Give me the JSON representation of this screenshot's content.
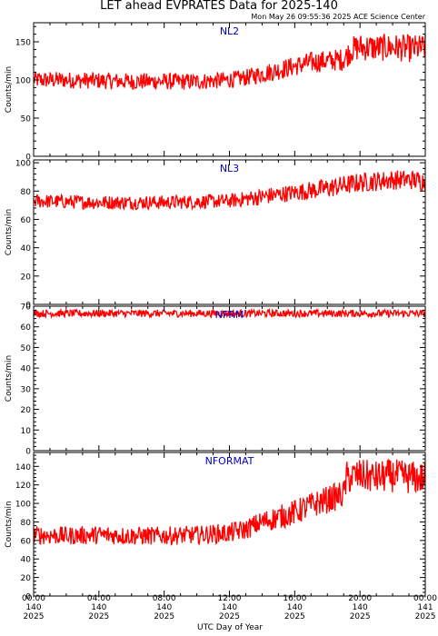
{
  "title": "LET ahead EVPRATES Data for 2025-140",
  "timestamp": "Mon May 26 09:55:36 2025 ACE Science Center",
  "xlabel": "UTC Day of Year",
  "colors": {
    "series": "#ff0000",
    "panel_label": "#0000cc",
    "axes": "#000000"
  },
  "x_ticks": [
    {
      "time": "00:00",
      "doy": "140",
      "year": "2025"
    },
    {
      "time": "04:00",
      "doy": "140",
      "year": "2025"
    },
    {
      "time": "08:00",
      "doy": "140",
      "year": "2025"
    },
    {
      "time": "12:00",
      "doy": "140",
      "year": "2025"
    },
    {
      "time": "16:00",
      "doy": "140",
      "year": "2025"
    },
    {
      "time": "20:00",
      "doy": "140",
      "year": "2025"
    },
    {
      "time": "00:00",
      "doy": "141",
      "year": "2025"
    }
  ],
  "chart_data": [
    {
      "type": "line",
      "name": "NL2",
      "ylabel": "Counts/min",
      "ylim": [
        0,
        175
      ],
      "yticks": [
        0,
        50,
        100,
        150
      ],
      "xlim_hours": [
        0,
        24
      ],
      "profile": {
        "x_hours": [
          0,
          2,
          4,
          6,
          8,
          10,
          12,
          13,
          14,
          15,
          16,
          17,
          18,
          19,
          19.5,
          20,
          21,
          22,
          23,
          24
        ],
        "y_mean": [
          100,
          100,
          99,
          98,
          98,
          98,
          100,
          103,
          108,
          113,
          118,
          123,
          125,
          127,
          140,
          143,
          142,
          143,
          141,
          142
        ],
        "noise_amplitude": [
          11,
          11,
          11,
          11,
          11,
          11,
          11,
          11,
          12,
          13,
          13,
          14,
          14,
          15,
          17,
          18,
          18,
          18,
          18,
          18
        ]
      }
    },
    {
      "type": "line",
      "name": "NL3",
      "ylabel": "Counts/min",
      "ylim": [
        0,
        102
      ],
      "yticks": [
        0,
        20,
        40,
        60,
        80,
        100
      ],
      "xlim_hours": [
        0,
        24
      ],
      "profile": {
        "x_hours": [
          0,
          4,
          8,
          12,
          14,
          16,
          18,
          19,
          20,
          21,
          22,
          23,
          24
        ],
        "y_mean": [
          73,
          72,
          72,
          73,
          76,
          79,
          82,
          84,
          86,
          87,
          88,
          88,
          87
        ],
        "noise_amplitude": [
          5,
          5,
          5,
          5,
          6,
          6,
          7,
          7,
          7,
          7,
          7,
          7,
          7
        ]
      }
    },
    {
      "type": "line",
      "name": "NFRM",
      "ylabel": "Counts/min",
      "ylim": [
        0,
        70
      ],
      "yticks": [
        0,
        10,
        20,
        30,
        40,
        50,
        60,
        70
      ],
      "xlim_hours": [
        0,
        24
      ],
      "profile": {
        "x_hours": [
          0,
          24
        ],
        "y_mean": [
          66.5,
          66.5
        ],
        "noise_amplitude": [
          1.8,
          1.8
        ]
      }
    },
    {
      "type": "line",
      "name": "NFORMAT",
      "ylabel": "Counts/min",
      "ylim": [
        0,
        155
      ],
      "yticks": [
        0,
        20,
        40,
        60,
        80,
        100,
        120,
        140
      ],
      "xlim_hours": [
        0,
        24
      ],
      "profile": {
        "x_hours": [
          0,
          2,
          4,
          6,
          8,
          10,
          12,
          13,
          14,
          15,
          16,
          17,
          18,
          19,
          19.2,
          20,
          21,
          22,
          23,
          24
        ],
        "y_mean": [
          66,
          65,
          66,
          65,
          65,
          66,
          68,
          72,
          80,
          85,
          90,
          98,
          104,
          110,
          128,
          130,
          128,
          130,
          128,
          127
        ],
        "noise_amplitude": [
          10,
          10,
          10,
          10,
          10,
          10,
          11,
          11,
          12,
          13,
          14,
          14,
          15,
          15,
          18,
          18,
          18,
          18,
          18,
          18
        ]
      }
    }
  ]
}
